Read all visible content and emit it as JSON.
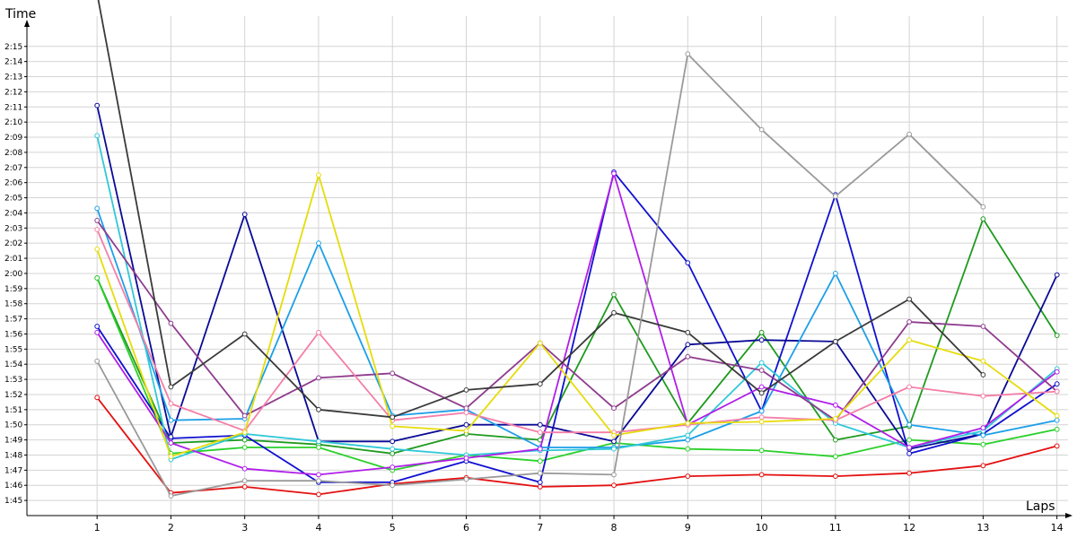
{
  "chart_data": {
    "type": "line",
    "xlabel": "Laps",
    "ylabel": "Time",
    "xlim": [
      0.05,
      14.15
    ],
    "ylim": [
      104,
      137
    ],
    "grid": true,
    "legend": "none",
    "x": [
      1,
      2,
      3,
      4,
      5,
      6,
      7,
      8,
      9,
      10,
      11,
      12,
      13,
      14
    ],
    "x_tick_labels": [
      "1",
      "2",
      "3",
      "4",
      "5",
      "6",
      "7",
      "8",
      "9",
      "10",
      "11",
      "12",
      "13",
      "14"
    ],
    "y_ticks": [
      105,
      106,
      107,
      108,
      109,
      110,
      111,
      112,
      113,
      114,
      115,
      116,
      117,
      118,
      119,
      120,
      121,
      122,
      123,
      124,
      125,
      126,
      127,
      128,
      129,
      130,
      131,
      132,
      133,
      134,
      135
    ],
    "y_tick_labels": [
      "1:45",
      "1:46",
      "1:47",
      "1:48",
      "1:49",
      "1:50",
      "1:51",
      "1:52",
      "1:53",
      "1:54",
      "1:55",
      "1:56",
      "1:57",
      "1:58",
      "1:59",
      "2:00",
      "2:01",
      "2:02",
      "2:03",
      "2:04",
      "2:05",
      "2:06",
      "2:07",
      "2:08",
      "2:09",
      "2:10",
      "2:11",
      "2:12",
      "2:13",
      "2:14",
      "2:15"
    ],
    "series": [
      {
        "color": "#e41010",
        "values": [
          111.8,
          105.5,
          105.9,
          105.4,
          106.1,
          106.5,
          105.9,
          106.0,
          106.6,
          106.7,
          106.6,
          106.8,
          107.3,
          108.6
        ]
      },
      {
        "color": "#1e9a1e",
        "values": [
          119.7,
          108.8,
          109.0,
          108.7,
          108.1,
          109.4,
          109.0,
          118.6,
          110.1,
          116.1,
          109.0,
          109.9,
          123.6,
          115.9
        ]
      },
      {
        "color": "#2ad02a",
        "values": [
          119.7,
          108.1,
          108.5,
          108.5,
          107.0,
          108.0,
          107.6,
          108.8,
          108.4,
          108.3,
          107.9,
          109.0,
          108.7,
          109.7
        ]
      },
      {
        "color": "#1010d0",
        "values": [
          116.5,
          109.1,
          109.3,
          106.2,
          106.2,
          107.6,
          106.2,
          126.7,
          120.7,
          110.9,
          125.2,
          108.1,
          109.4,
          112.7
        ]
      },
      {
        "color": "#0a0a96",
        "values": [
          131.1,
          109.2,
          123.9,
          108.9,
          108.9,
          110.0,
          110.0,
          108.9,
          115.3,
          115.6,
          115.5,
          108.4,
          109.4,
          119.9
        ]
      },
      {
        "color": "#1c9fe8",
        "values": [
          124.3,
          110.3,
          110.4,
          122.0,
          110.6,
          111.0,
          108.5,
          108.5,
          109.0,
          110.9,
          120.0,
          110.0,
          109.3,
          110.3
        ]
      },
      {
        "color": "#30c8d8",
        "values": [
          129.1,
          107.7,
          109.4,
          108.9,
          108.4,
          108.0,
          108.3,
          108.4,
          109.3,
          114.1,
          110.1,
          108.5,
          109.6,
          113.7
        ]
      },
      {
        "color": "#b01ee8",
        "values": [
          116.1,
          108.8,
          107.1,
          106.7,
          107.2,
          107.8,
          108.4,
          126.6,
          110.0,
          112.5,
          111.3,
          108.5,
          109.8,
          113.5
        ]
      },
      {
        "color": "#8e3c8e",
        "values": [
          123.5,
          116.7,
          110.6,
          113.1,
          113.4,
          111.1,
          115.4,
          111.1,
          114.5,
          113.6,
          110.3,
          116.8,
          116.5,
          112.2
        ]
      },
      {
        "color": "#f47ea8",
        "values": [
          122.9,
          111.4,
          109.6,
          116.1,
          110.3,
          110.8,
          109.5,
          109.5,
          110.0,
          110.5,
          110.3,
          112.5,
          111.9,
          112.2
        ]
      },
      {
        "color": "#e6dc0a",
        "values": [
          121.6,
          107.9,
          109.5,
          126.5,
          109.9,
          109.6,
          115.4,
          109.3,
          110.1,
          110.2,
          110.4,
          115.6,
          114.2,
          110.6
        ]
      },
      {
        "color": "#3a3a3a",
        "values": [
          138.5,
          112.5,
          116.0,
          111.0,
          110.5,
          112.3,
          112.7,
          117.4,
          116.1,
          112.1,
          115.5,
          118.3,
          113.3,
          null
        ]
      },
      {
        "color": "#9a9a9a",
        "values": [
          114.2,
          105.3,
          106.3,
          106.3,
          106.0,
          106.4,
          106.8,
          106.7,
          134.5,
          129.5,
          125.1,
          129.2,
          124.4,
          null
        ]
      }
    ]
  }
}
